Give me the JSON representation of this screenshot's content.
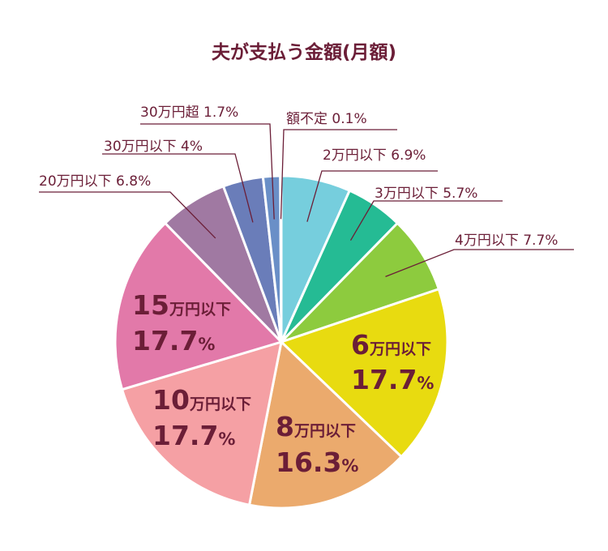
{
  "chart_data": {
    "type": "pie",
    "title": "夫が支払う金額(月額)",
    "slices": [
      {
        "category": "2万円以下",
        "value": 6.9,
        "pct": "6.9%",
        "color": "#76CEDD",
        "label": "outside"
      },
      {
        "category": "3万円以下",
        "value": 5.7,
        "pct": "5.7%",
        "color": "#25BB94",
        "label": "outside"
      },
      {
        "category": "4万円以下",
        "value": 7.7,
        "pct": "7.7%",
        "color": "#8DCB3E",
        "label": "outside"
      },
      {
        "category": "6万円以下",
        "value": 17.7,
        "num": "6",
        "unit": "万円以下",
        "pct": "17.7",
        "color": "#E8DB10",
        "label": "inside"
      },
      {
        "category": "8万円以下",
        "value": 16.3,
        "num": "8",
        "unit": "万円以下",
        "pct": "16.3",
        "color": "#EBAA6D",
        "label": "inside"
      },
      {
        "category": "10万円以下",
        "value": 17.7,
        "num": "10",
        "unit": "万円以下",
        "pct": "17.7",
        "color": "#F5A0A4",
        "label": "inside"
      },
      {
        "category": "15万円以下",
        "value": 17.7,
        "num": "15",
        "unit": "万円以下",
        "pct": "17.7",
        "color": "#E279A9",
        "label": "inside"
      },
      {
        "category": "20万円以下",
        "value": 6.8,
        "pct": "6.8%",
        "color": "#A079A2",
        "label": "outside"
      },
      {
        "category": "30万円以下",
        "value": 4,
        "pct": "4%",
        "color": "#6A7DB9",
        "label": "outside"
      },
      {
        "category": "30万円超",
        "value": 1.7,
        "pct": "1.7%",
        "color": "#6A8FC7",
        "label": "outside"
      },
      {
        "category": "額不定",
        "value": 0.1,
        "pct": "0.1%",
        "color": "#5BA5D8",
        "label": "outside"
      }
    ],
    "percent_sign": "%",
    "label_color": "#6B1E37",
    "leader_color": "#6B1E37"
  }
}
